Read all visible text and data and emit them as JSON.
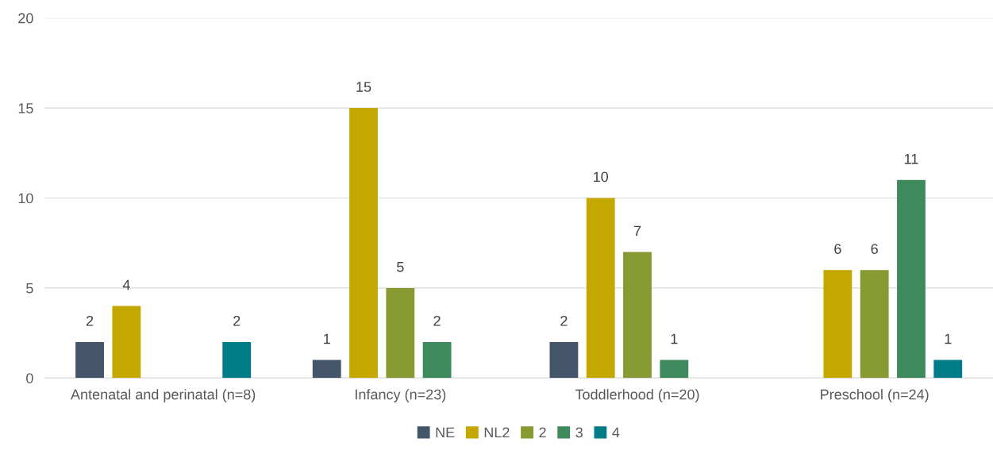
{
  "chart_data": {
    "type": "bar",
    "categories": [
      "Antenatal and perinatal (n=8)",
      "Infancy (n=23)",
      "Toddlerhood (n=20)",
      "Preschool (n=24)"
    ],
    "series": [
      {
        "name": "NE",
        "color": "#44546a",
        "values": [
          2,
          1,
          2,
          null
        ]
      },
      {
        "name": "NL2",
        "color": "#c4a800",
        "values": [
          4,
          15,
          10,
          6
        ]
      },
      {
        "name": "2",
        "color": "#869a31",
        "values": [
          null,
          5,
          7,
          6
        ]
      },
      {
        "name": "3",
        "color": "#3f8a5c",
        "values": [
          null,
          2,
          1,
          11
        ]
      },
      {
        "name": "4",
        "color": "#007c89",
        "values": [
          2,
          null,
          null,
          1
        ]
      }
    ],
    "ylim": [
      0,
      20
    ],
    "yticks": [
      0,
      5,
      10,
      15,
      20
    ],
    "grid": "y",
    "legend": "bottom",
    "data_labels": true
  }
}
